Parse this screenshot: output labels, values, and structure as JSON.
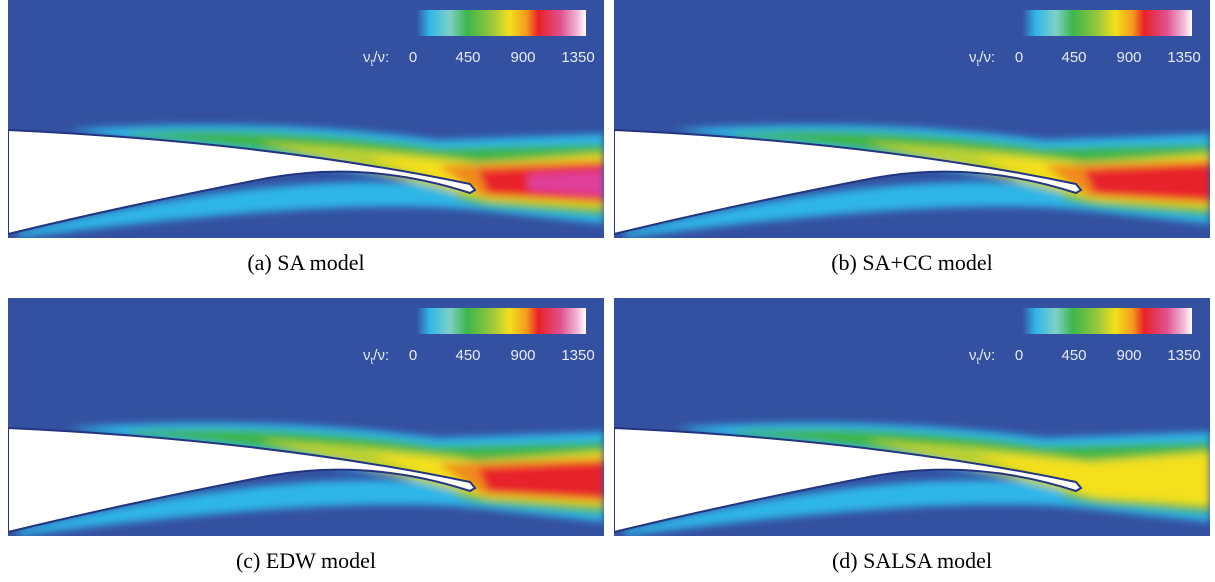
{
  "panels": [
    {
      "caption": "(a) SA model",
      "colorbar": {
        "label": {
          "base": "ν",
          "sub": "t",
          "tail": "/ν:"
        },
        "ticks": [
          0,
          450,
          900,
          1350
        ]
      }
    },
    {
      "caption": "(b) SA+CC model",
      "colorbar": {
        "label": {
          "base": "ν",
          "sub": "t",
          "tail": "/ν:"
        },
        "ticks": [
          0,
          450,
          900,
          1350
        ]
      }
    },
    {
      "caption": "(c) EDW model",
      "colorbar": {
        "label": {
          "base": "ν",
          "sub": "t",
          "tail": "/ν:"
        },
        "ticks": [
          0,
          450,
          900,
          1350
        ]
      }
    },
    {
      "caption": "(d) SALSA model",
      "colorbar": {
        "label": {
          "base": "ν",
          "sub": "t",
          "tail": "/ν:"
        },
        "ticks": [
          0,
          450,
          900,
          1350
        ]
      }
    }
  ]
}
